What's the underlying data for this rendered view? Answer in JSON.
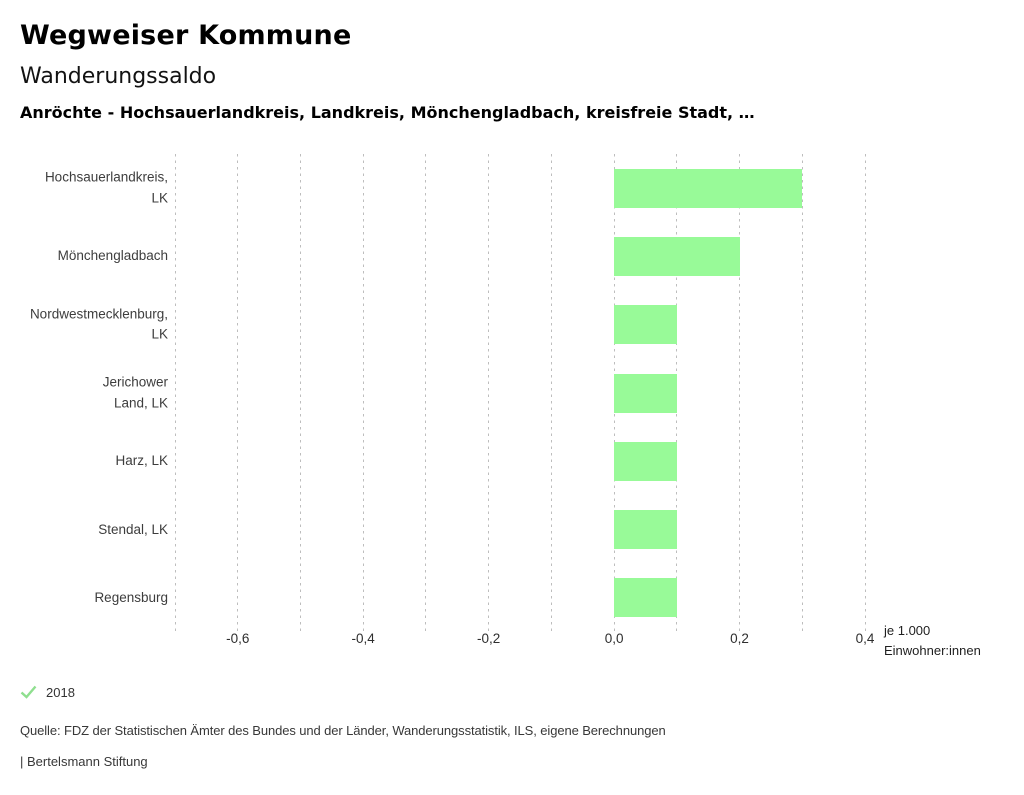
{
  "header": {
    "title": "Wegweiser Kommune",
    "subtitle": "Wanderungssaldo",
    "description": "Anröchte - Hochsauerlandkreis, Landkreis, Mönchengladbach, kreisfreie Stadt, …"
  },
  "chart_data": {
    "type": "bar",
    "orientation": "horizontal",
    "title": "Wanderungssaldo",
    "categories": [
      "Hochsauerlandkreis, LK",
      "Mönchengladbach",
      "Nordwestmecklenburg, LK",
      "Jerichower Land, LK",
      "Harz, LK",
      "Stendal, LK",
      "Regensburg"
    ],
    "category_labels": [
      "Hochsauerlandkreis,\nLK",
      "Mönchengladbach",
      "Nordwestmecklenburg,\nLK",
      "Jerichower\nLand, LK",
      "Harz, LK",
      "Stendal, LK",
      "Regensburg"
    ],
    "values": [
      0.3,
      0.2,
      0.1,
      0.1,
      0.1,
      0.1,
      0.1
    ],
    "series_name": "2018",
    "xlabel": "je 1.000 Einwohner:innen",
    "unit_line1": "je 1.000",
    "unit_line2": "Einwohner:innen",
    "xlim": [
      -0.7,
      0.4
    ],
    "xticks": [
      -0.6,
      -0.4,
      -0.2,
      0,
      0.2,
      0.4
    ],
    "xtick_labels": [
      "-0,6",
      "-0,4",
      "-0,2",
      "0,0",
      "0,2",
      "0,4"
    ],
    "grid_step": 0.1,
    "grid": "vertical-dashed",
    "legend_position": "bottom-left",
    "legend_label": "2018",
    "bar_color": "#98fa98",
    "check_color": "#8fdf8f",
    "gridline_color": "#bdbdbd"
  },
  "footer": {
    "source": "Quelle: FDZ der Statistischen Ämter des Bundes und der Länder, Wanderungsstatistik, ILS, eigene Berechnungen",
    "branding": "| Bertelsmann Stiftung"
  }
}
